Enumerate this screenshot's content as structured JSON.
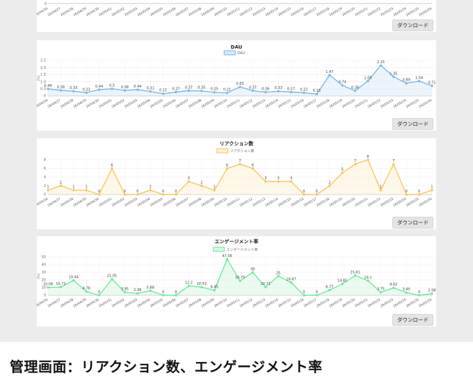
{
  "dates": [
    "26/04/26",
    "26/04/27",
    "26/04/28",
    "26/04/29",
    "26/04/30",
    "26/05/01",
    "26/05/02",
    "26/05/03",
    "26/05/04",
    "26/05/05",
    "26/05/06",
    "26/05/07",
    "26/05/08",
    "26/05/09",
    "26/05/10",
    "26/05/11",
    "26/05/12",
    "26/05/13",
    "26/05/14",
    "26/05/15",
    "26/05/16",
    "26/05/17",
    "26/05/18",
    "26/05/19",
    "26/05/20",
    "26/05/21",
    "26/05/22",
    "26/05/23",
    "26/05/24",
    "26/05/25",
    "26/05/26"
  ],
  "download_label": "ダウンロード",
  "caption": "管理画面：リアクション数、エンゲージメント率",
  "top_partial_tick": "0",
  "chart_data": [
    {
      "type": "line",
      "title": "DAU",
      "legend": "DAU",
      "ylabel": "(%)",
      "color": "#79b8e8",
      "fill": "#d4e9f8",
      "ylim": [
        0,
        2.5
      ],
      "yticks": [
        "0",
        "0.5",
        "1.0",
        "1.5",
        "2.0",
        "2.5"
      ],
      "values": [
        0.49,
        0.39,
        0.33,
        0.22,
        0.44,
        0.5,
        0.38,
        0.44,
        0.31,
        0.15,
        0.27,
        0.37,
        0.35,
        0.25,
        0.21,
        0.63,
        0.37,
        0.26,
        0.33,
        0.27,
        0.22,
        0.13,
        1.47,
        0.74,
        0.36,
        1.05,
        2.15,
        1.35,
        0.89,
        1.04,
        0.71
      ],
      "labels": [
        "0.49",
        "0.39",
        "0.33",
        "0.22",
        "0.44",
        "0.5",
        "0.38",
        "0.44",
        "0.31",
        "0.15",
        "0.27",
        "0.37",
        "0.35",
        "0.25",
        "0.21",
        "0.63",
        "0.37",
        "0.26",
        "0.33",
        "0.27",
        "0.22",
        "0.13",
        "1.47",
        "0.74",
        "0.36",
        "1.05",
        "2.15",
        "1.35",
        "0.89",
        "1.04",
        "0.71"
      ]
    },
    {
      "type": "line",
      "title": "リアクション数",
      "legend": "リアクション数",
      "ylabel": "",
      "color": "#f5c75c",
      "fill": "#fdf0cf",
      "ylim": [
        0,
        8
      ],
      "yticks": [
        "0",
        "2",
        "4",
        "6",
        "8"
      ],
      "values": [
        1,
        2,
        1,
        1,
        0,
        6,
        0,
        0,
        1,
        0,
        0,
        3,
        2,
        1,
        6,
        7,
        6,
        3,
        3,
        3,
        0,
        0,
        2,
        5,
        7,
        8,
        1,
        7,
        0,
        0,
        1
      ],
      "labels": [
        "1",
        "2",
        "1",
        "1",
        "0",
        "6",
        "0",
        "0",
        "1",
        "0",
        "0",
        "3",
        "2",
        "1",
        "6",
        "7",
        "6",
        "3",
        "3",
        "3",
        "0",
        "0",
        "2",
        "5",
        "7",
        "8",
        "1",
        "7",
        "0",
        "0",
        "1"
      ]
    },
    {
      "type": "line",
      "title": "エンゲージメント率",
      "legend": "エンゲージメント率",
      "ylabel": "(%)",
      "color": "#6ee89a",
      "fill": "#d3f6df",
      "ylim": [
        0,
        50
      ],
      "yticks": [
        "0",
        "10",
        "20",
        "30",
        "40",
        "50"
      ],
      "values": [
        10.08,
        10.71,
        19.44,
        4.76,
        0,
        21.05,
        3.95,
        2.38,
        5.88,
        0,
        0,
        12.2,
        10.53,
        6.45,
        47.06,
        18.75,
        30,
        10.71,
        25,
        16.67,
        0,
        0,
        6.77,
        14.81,
        25.81,
        19.1,
        3.75,
        9.62,
        3.45,
        0,
        2.08
      ],
      "labels": [
        "10.08",
        "10.71",
        "19.44",
        "4.76",
        "0",
        "21.05",
        "3.95",
        "2.38",
        "5.88",
        "0",
        "0",
        "12.2",
        "10.53",
        "6.45",
        "47.06",
        "18.75",
        "30",
        "10.71",
        "25",
        "16.67",
        "0",
        "0",
        "6.77",
        "14.81",
        "25.81",
        "19.1",
        "3.75",
        "9.62",
        "3.45",
        "0",
        "2.08"
      ]
    }
  ]
}
